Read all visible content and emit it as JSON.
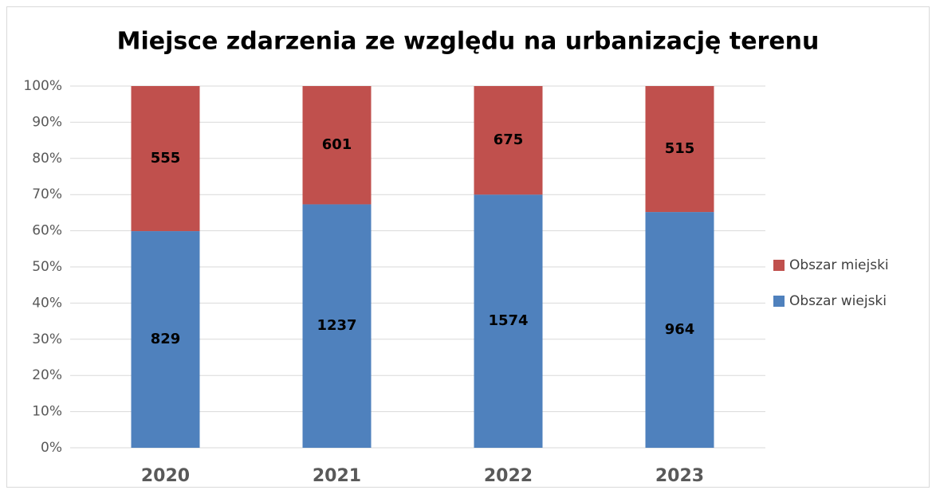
{
  "chart_data": {
    "type": "bar",
    "stacked": "percent",
    "title": "Miejsce zdarzenia ze względu na urbanizację terenu",
    "categories": [
      "2020",
      "2021",
      "2022",
      "2023"
    ],
    "series": [
      {
        "name": "Obszar wiejski",
        "color": "#4f81bd",
        "values": [
          829,
          1237,
          1574,
          964
        ]
      },
      {
        "name": "Obszar miejski",
        "color": "#c0504d",
        "values": [
          555,
          601,
          675,
          515
        ]
      }
    ],
    "ylim": [
      0,
      100
    ],
    "yticks": [
      {
        "value": 0,
        "label": "0%"
      },
      {
        "value": 10,
        "label": "10%"
      },
      {
        "value": 20,
        "label": "20%"
      },
      {
        "value": 30,
        "label": "30%"
      },
      {
        "value": 40,
        "label": "40%"
      },
      {
        "value": 50,
        "label": "50%"
      },
      {
        "value": 60,
        "label": "60%"
      },
      {
        "value": 70,
        "label": "70%"
      },
      {
        "value": 80,
        "label": "80%"
      },
      {
        "value": 90,
        "label": "90%"
      },
      {
        "value": 100,
        "label": "100%"
      }
    ],
    "grid": true,
    "legend": "right"
  }
}
